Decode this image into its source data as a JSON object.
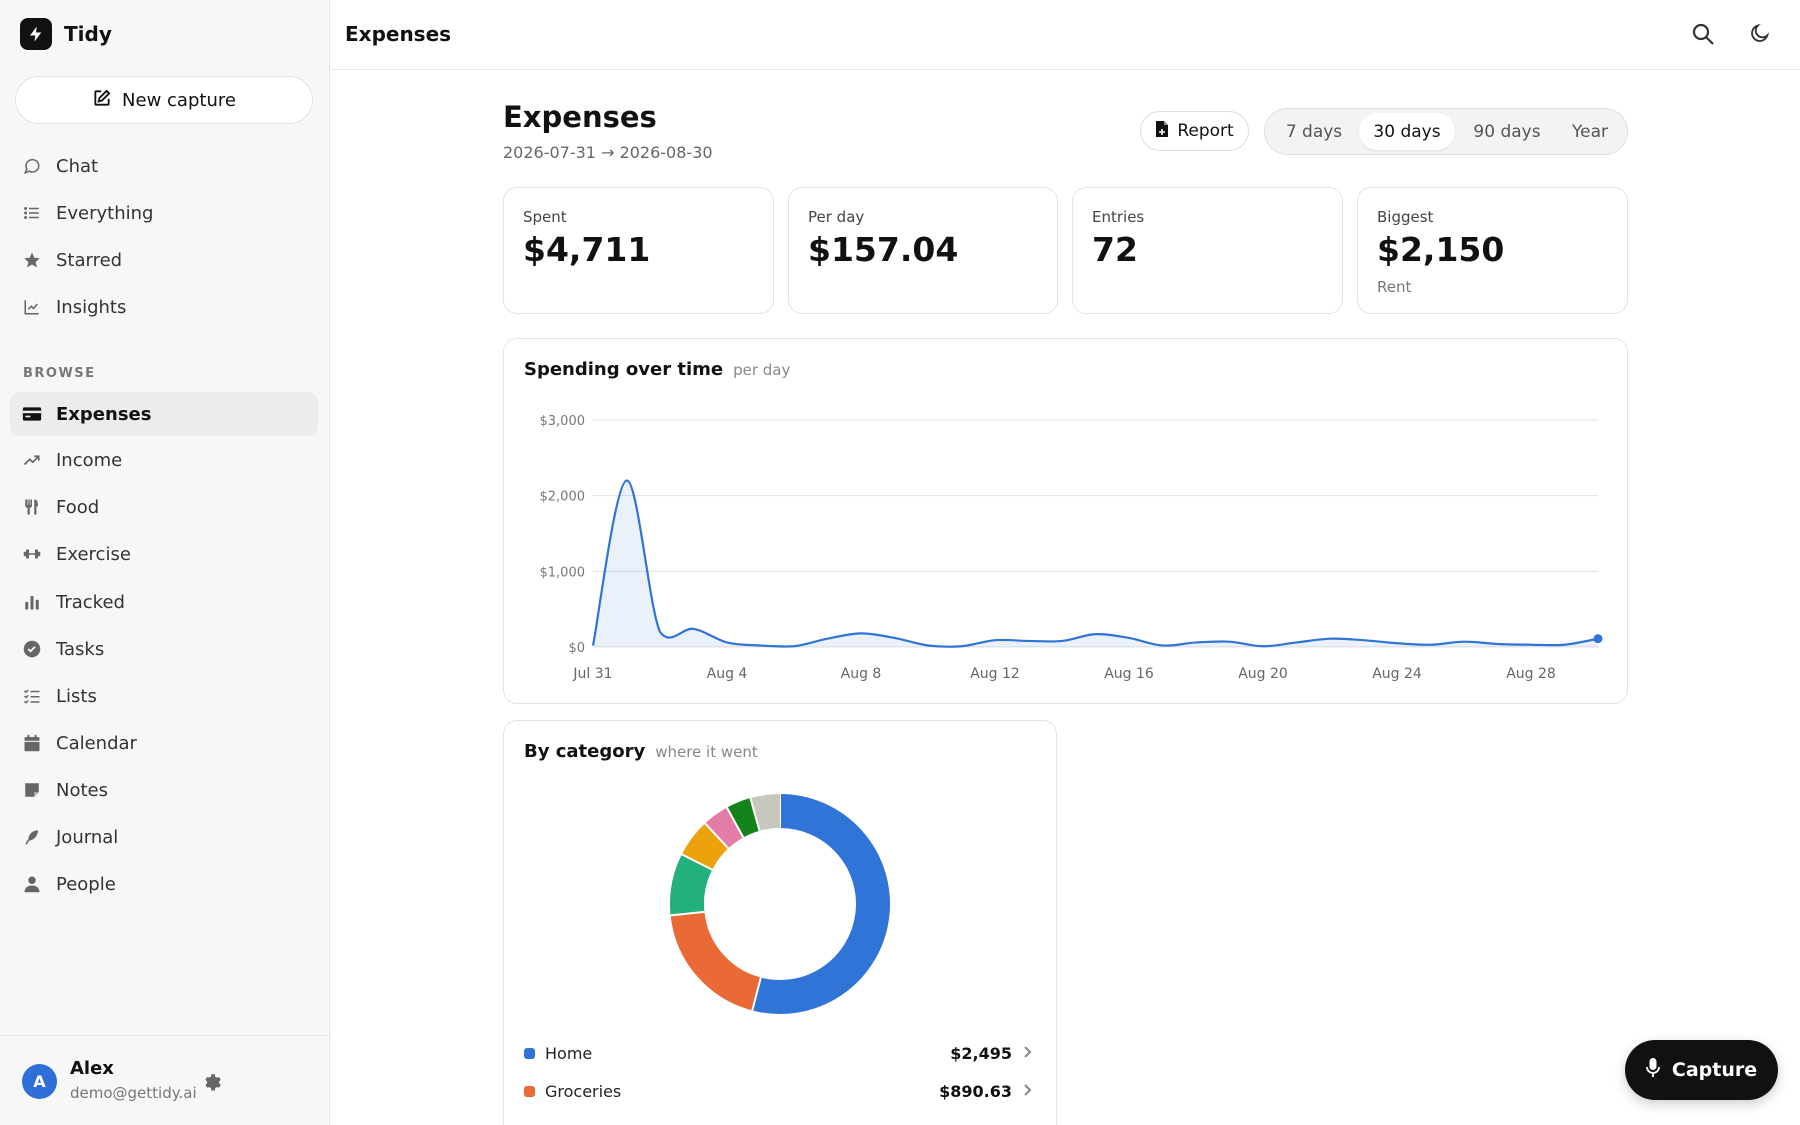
{
  "app": {
    "name": "Tidy"
  },
  "sidebar": {
    "new_capture_label": "New capture",
    "primary_items": [
      {
        "label": "Chat",
        "icon": "chat-bubble-icon"
      },
      {
        "label": "Everything",
        "icon": "list-icon"
      },
      {
        "label": "Starred",
        "icon": "star-icon"
      },
      {
        "label": "Insights",
        "icon": "line-chart-icon"
      }
    ],
    "browse_label": "BROWSE",
    "browse_items": [
      {
        "label": "Expenses",
        "icon": "credit-card-icon",
        "active": true
      },
      {
        "label": "Income",
        "icon": "trending-up-icon"
      },
      {
        "label": "Food",
        "icon": "utensils-icon"
      },
      {
        "label": "Exercise",
        "icon": "dumbbell-icon"
      },
      {
        "label": "Tracked",
        "icon": "bar-chart-icon"
      },
      {
        "label": "Tasks",
        "icon": "check-circle-icon"
      },
      {
        "label": "Lists",
        "icon": "checklist-icon"
      },
      {
        "label": "Calendar",
        "icon": "calendar-icon"
      },
      {
        "label": "Notes",
        "icon": "note-icon"
      },
      {
        "label": "Journal",
        "icon": "feather-icon"
      },
      {
        "label": "People",
        "icon": "person-icon"
      }
    ],
    "user": {
      "initial": "A",
      "name": "Alex",
      "email": "demo@gettidy.ai"
    }
  },
  "topbar": {
    "title": "Expenses"
  },
  "main": {
    "title": "Expenses",
    "date_range": "2026-07-31 → 2026-08-30",
    "report_label": "Report",
    "ranges": [
      {
        "label": "7 days"
      },
      {
        "label": "30 days",
        "active": true
      },
      {
        "label": "90 days"
      },
      {
        "label": "Year"
      }
    ],
    "stats": [
      {
        "label": "Spent",
        "value": "$4,711",
        "sub": ""
      },
      {
        "label": "Per day",
        "value": "$157.04",
        "sub": ""
      },
      {
        "label": "Entries",
        "value": "72",
        "sub": ""
      },
      {
        "label": "Biggest",
        "value": "$2,150",
        "sub": "Rent"
      }
    ],
    "spending_card": {
      "title": "Spending over time",
      "subtitle": "per day"
    },
    "category_card": {
      "title": "By category",
      "subtitle": "where it went",
      "rows": [
        {
          "name": "Home",
          "amount": "$2,495",
          "color": "#2f74d6"
        },
        {
          "name": "Groceries",
          "amount": "$890.63",
          "color": "#ea6a35"
        }
      ]
    }
  },
  "capture_label": "Capture",
  "chart_data": [
    {
      "type": "area",
      "title": "Spending over time",
      "subtitle": "per day",
      "y_ticks": [
        "$0",
        "$1,000",
        "$2,000",
        "$3,000"
      ],
      "x_ticks": [
        "Jul 31",
        "Aug 4",
        "Aug 8",
        "Aug 12",
        "Aug 16",
        "Aug 20",
        "Aug 24",
        "Aug 28"
      ],
      "ylim": [
        0,
        3000
      ],
      "grid": true,
      "color": "#2f74d6",
      "x": [
        "Jul 31",
        "Aug 1",
        "Aug 2",
        "Aug 3",
        "Aug 4",
        "Aug 5",
        "Aug 6",
        "Aug 7",
        "Aug 8",
        "Aug 9",
        "Aug 10",
        "Aug 11",
        "Aug 12",
        "Aug 13",
        "Aug 14",
        "Aug 15",
        "Aug 16",
        "Aug 17",
        "Aug 18",
        "Aug 19",
        "Aug 20",
        "Aug 21",
        "Aug 22",
        "Aug 23",
        "Aug 24",
        "Aug 25",
        "Aug 26",
        "Aug 27",
        "Aug 28",
        "Aug 29",
        "Aug 30"
      ],
      "values": [
        20,
        2200,
        200,
        240,
        60,
        20,
        10,
        110,
        180,
        120,
        20,
        10,
        90,
        80,
        80,
        170,
        120,
        20,
        60,
        70,
        10,
        60,
        110,
        90,
        50,
        30,
        70,
        40,
        30,
        30,
        110
      ]
    },
    {
      "type": "pie",
      "title": "By category",
      "subtitle": "where it went",
      "donut": true,
      "slices": [
        {
          "name": "Home",
          "value": 2495,
          "color": "#2f74d6"
        },
        {
          "name": "Groceries",
          "value": 890.63,
          "color": "#ea6a35"
        },
        {
          "name": "",
          "value": 420,
          "color": "#22b07d"
        },
        {
          "name": "",
          "value": 260,
          "color": "#eba20d"
        },
        {
          "name": "",
          "value": 180,
          "color": "#e37da8"
        },
        {
          "name": "",
          "value": 170,
          "color": "#14831c"
        },
        {
          "name": "",
          "value": 200,
          "color": "#c8c7bd"
        }
      ]
    }
  ]
}
